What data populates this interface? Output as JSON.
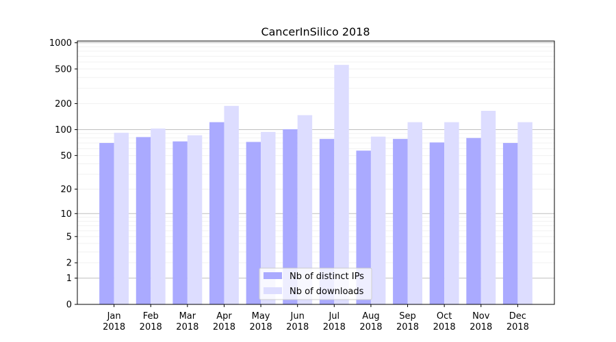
{
  "chart_data": {
    "type": "bar",
    "title": "CancerInSilico 2018",
    "xlabel": "",
    "ylabel": "",
    "y_scale": "log (value + 1)",
    "ylim": [
      0,
      1000
    ],
    "y_ticks": [
      0,
      1,
      2,
      5,
      10,
      20,
      50,
      100,
      200,
      500,
      1000
    ],
    "grid": "horizontal, major and minor",
    "legend_position": "bottom-center",
    "categories": [
      {
        "month": "Jan",
        "year": "2018"
      },
      {
        "month": "Feb",
        "year": "2018"
      },
      {
        "month": "Mar",
        "year": "2018"
      },
      {
        "month": "Apr",
        "year": "2018"
      },
      {
        "month": "May",
        "year": "2018"
      },
      {
        "month": "Jun",
        "year": "2018"
      },
      {
        "month": "Jul",
        "year": "2018"
      },
      {
        "month": "Aug",
        "year": "2018"
      },
      {
        "month": "Sep",
        "year": "2018"
      },
      {
        "month": "Oct",
        "year": "2018"
      },
      {
        "month": "Nov",
        "year": "2018"
      },
      {
        "month": "Dec",
        "year": "2018"
      }
    ],
    "series": [
      {
        "name": "Nb of distinct IPs",
        "color": "#aaaaff",
        "values": [
          70,
          82,
          73,
          122,
          72,
          101,
          78,
          57,
          78,
          71,
          80,
          70
        ]
      },
      {
        "name": "Nb of downloads",
        "color": "#ddddff",
        "values": [
          92,
          103,
          86,
          188,
          94,
          147,
          558,
          83,
          122,
          122,
          165,
          122
        ]
      }
    ]
  }
}
